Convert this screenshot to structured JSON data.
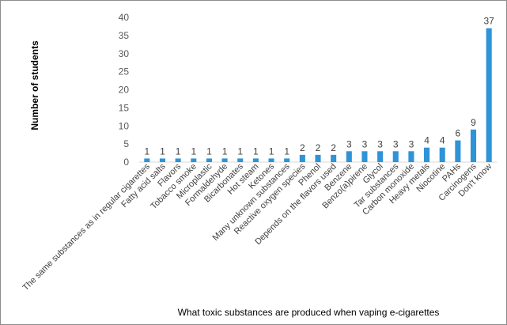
{
  "chart_data": {
    "type": "bar",
    "title": "",
    "xlabel": "What toxic substances are produced when vaping e-cigarettes",
    "ylabel": "Number of students",
    "ylim": [
      0,
      40
    ],
    "yticks": [
      0,
      5,
      10,
      15,
      20,
      25,
      30,
      35,
      40
    ],
    "grid": false,
    "legend": "none",
    "bar_color": "#2e93d8",
    "categories": [
      "The same substances as in regular cigarettes",
      "Fatty acid salts",
      "Flavors",
      "Tobacco smoke",
      "Microplastic",
      "Formaldehyde",
      "Bicarbonates",
      "Hot steam",
      "Ketones",
      "Many unknown substances",
      "Reactive oxygen species",
      "Phenol",
      "Depends on the flavors used",
      "Benzene",
      "Benzo(a)pirene",
      "Glycol",
      "Tar substances",
      "Carbon monoxide",
      "Heavy metals",
      "Niocotine",
      "PAHs",
      "Carcinogens",
      "Don't know"
    ],
    "values": [
      1,
      1,
      1,
      1,
      1,
      1,
      1,
      1,
      1,
      1,
      2,
      2,
      2,
      3,
      3,
      3,
      3,
      3,
      4,
      4,
      6,
      9,
      37
    ]
  }
}
